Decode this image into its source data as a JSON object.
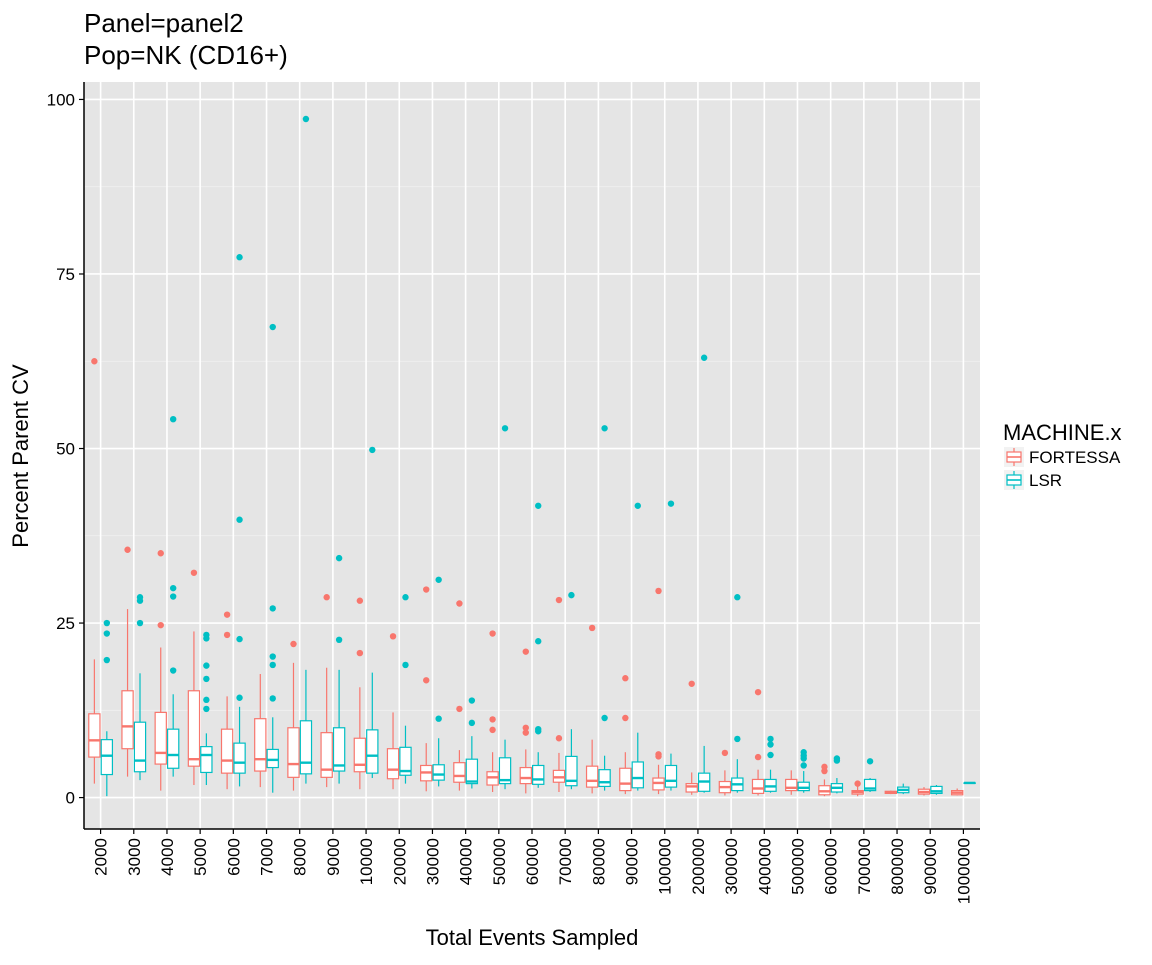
{
  "chart_data": {
    "type": "box",
    "title_lines": [
      "Panel=panel2",
      "Pop=NK (CD16+)"
    ],
    "xlabel": "Total Events Sampled",
    "ylabel": "Percent Parent CV",
    "ylim": [
      -4.5,
      102.5
    ],
    "yticks": [
      0,
      25,
      50,
      75,
      100
    ],
    "grid": true,
    "legend": {
      "title": "MACHINE.x",
      "position": "right"
    },
    "categories": [
      "2000",
      "3000",
      "4000",
      "5000",
      "6000",
      "7000",
      "8000",
      "9000",
      "10000",
      "20000",
      "30000",
      "40000",
      "50000",
      "60000",
      "70000",
      "80000",
      "90000",
      "100000",
      "200000",
      "300000",
      "400000",
      "500000",
      "600000",
      "700000",
      "800000",
      "900000",
      "1000000"
    ],
    "series": [
      {
        "name": "FORTESSA",
        "color": "#F8766D",
        "boxes": [
          {
            "lo": 2.0,
            "q1": 5.8,
            "med": 8.2,
            "q3": 12.0,
            "hi": 19.8,
            "outliers": [
              62.5
            ]
          },
          {
            "lo": 3.0,
            "q1": 7.0,
            "med": 10.2,
            "q3": 15.3,
            "hi": 27.0,
            "outliers": [
              35.5
            ]
          },
          {
            "lo": 1.0,
            "q1": 4.8,
            "med": 6.4,
            "q3": 12.2,
            "hi": 21.5,
            "outliers": [
              35.0,
              24.7
            ]
          },
          {
            "lo": 1.8,
            "q1": 4.5,
            "med": 5.5,
            "q3": 15.3,
            "hi": 23.8,
            "outliers": [
              32.2
            ]
          },
          {
            "lo": 1.2,
            "q1": 3.5,
            "med": 5.3,
            "q3": 9.8,
            "hi": 14.5,
            "outliers": [
              26.2,
              23.3
            ]
          },
          {
            "lo": 1.5,
            "q1": 3.8,
            "med": 5.5,
            "q3": 11.3,
            "hi": 17.7,
            "outliers": []
          },
          {
            "lo": 1.0,
            "q1": 2.9,
            "med": 4.8,
            "q3": 10.0,
            "hi": 19.3,
            "outliers": [
              22.0
            ]
          },
          {
            "lo": 1.5,
            "q1": 2.9,
            "med": 4.0,
            "q3": 9.3,
            "hi": 18.6,
            "outliers": [
              28.7
            ]
          },
          {
            "lo": 1.2,
            "q1": 3.7,
            "med": 4.7,
            "q3": 8.5,
            "hi": 15.8,
            "outliers": [
              28.2,
              20.7
            ]
          },
          {
            "lo": 1.2,
            "q1": 2.7,
            "med": 4.0,
            "q3": 7.0,
            "hi": 12.2,
            "outliers": [
              23.1
            ]
          },
          {
            "lo": 0.9,
            "q1": 2.4,
            "med": 3.6,
            "q3": 4.6,
            "hi": 7.8,
            "outliers": [
              29.8,
              16.8
            ]
          },
          {
            "lo": 1.0,
            "q1": 2.2,
            "med": 3.1,
            "q3": 5.0,
            "hi": 6.8,
            "outliers": [
              27.8,
              12.7
            ]
          },
          {
            "lo": 0.8,
            "q1": 1.8,
            "med": 2.9,
            "q3": 3.7,
            "hi": 6.5,
            "outliers": [
              23.5,
              11.2,
              9.7
            ]
          },
          {
            "lo": 0.6,
            "q1": 2.0,
            "med": 2.8,
            "q3": 4.3,
            "hi": 6.9,
            "outliers": [
              20.9,
              10.0,
              9.3
            ]
          },
          {
            "lo": 0.8,
            "q1": 2.2,
            "med": 2.9,
            "q3": 3.9,
            "hi": 6.4,
            "outliers": [
              28.3,
              8.5
            ]
          },
          {
            "lo": 0.6,
            "q1": 1.5,
            "med": 2.4,
            "q3": 4.5,
            "hi": 8.3,
            "outliers": [
              24.3
            ]
          },
          {
            "lo": 0.5,
            "q1": 1.0,
            "med": 2.0,
            "q3": 4.2,
            "hi": 6.5,
            "outliers": [
              17.1,
              11.4
            ]
          },
          {
            "lo": 0.5,
            "q1": 1.1,
            "med": 2.1,
            "q3": 2.8,
            "hi": 4.7,
            "outliers": [
              29.6,
              6.2,
              5.9
            ]
          },
          {
            "lo": 0.4,
            "q1": 0.8,
            "med": 1.6,
            "q3": 2.0,
            "hi": 3.6,
            "outliers": [
              16.3
            ]
          },
          {
            "lo": 0.3,
            "q1": 0.7,
            "med": 1.5,
            "q3": 2.3,
            "hi": 3.9,
            "outliers": [
              6.4
            ]
          },
          {
            "lo": 0.3,
            "q1": 0.6,
            "med": 1.3,
            "q3": 2.6,
            "hi": 4.0,
            "outliers": [
              15.1,
              5.8
            ]
          },
          {
            "lo": 0.4,
            "q1": 1.0,
            "med": 1.4,
            "q3": 2.6,
            "hi": 3.9,
            "outliers": []
          },
          {
            "lo": 0.2,
            "q1": 0.4,
            "med": 0.9,
            "q3": 1.7,
            "hi": 2.6,
            "outliers": [
              4.4,
              3.8
            ]
          },
          {
            "lo": 0.2,
            "q1": 0.5,
            "med": 0.8,
            "q3": 1.0,
            "hi": 1.6,
            "outliers": [
              2.0
            ]
          },
          {
            "lo": 0.5,
            "q1": 0.6,
            "med": 0.7,
            "q3": 0.9,
            "hi": 1.0,
            "outliers": []
          },
          {
            "lo": 0.3,
            "q1": 0.5,
            "med": 0.8,
            "q3": 1.2,
            "hi": 1.5,
            "outliers": []
          },
          {
            "lo": 0.3,
            "q1": 0.4,
            "med": 0.7,
            "q3": 1.0,
            "hi": 1.3,
            "outliers": []
          }
        ]
      },
      {
        "name": "LSR",
        "color": "#00BFC4",
        "boxes": [
          {
            "lo": 0.2,
            "q1": 3.3,
            "med": 6.0,
            "q3": 8.3,
            "hi": 9.5,
            "outliers": [
              25.0,
              23.5,
              19.7
            ]
          },
          {
            "lo": 2.5,
            "q1": 3.7,
            "med": 5.3,
            "q3": 10.8,
            "hi": 17.8,
            "outliers": [
              28.7,
              28.2,
              25.0
            ]
          },
          {
            "lo": 3.0,
            "q1": 4.2,
            "med": 6.1,
            "q3": 9.8,
            "hi": 14.8,
            "outliers": [
              54.2,
              30.0,
              28.8,
              18.2
            ]
          },
          {
            "lo": 1.8,
            "q1": 3.6,
            "med": 6.1,
            "q3": 7.3,
            "hi": 9.2,
            "outliers": [
              23.3,
              22.8,
              18.9,
              17.0,
              14.0,
              12.7
            ]
          },
          {
            "lo": 1.6,
            "q1": 3.5,
            "med": 5.0,
            "q3": 7.8,
            "hi": 13.0,
            "outliers": [
              77.4,
              39.8,
              22.7,
              14.3
            ]
          },
          {
            "lo": 0.7,
            "q1": 4.3,
            "med": 5.4,
            "q3": 6.9,
            "hi": 11.5,
            "outliers": [
              67.4,
              27.1,
              20.2,
              19.0,
              14.2
            ]
          },
          {
            "lo": 2.0,
            "q1": 3.4,
            "med": 5.0,
            "q3": 11.0,
            "hi": 18.3,
            "outliers": [
              97.2
            ]
          },
          {
            "lo": 2.0,
            "q1": 3.8,
            "med": 4.6,
            "q3": 10.0,
            "hi": 18.3,
            "outliers": [
              34.3,
              22.6
            ]
          },
          {
            "lo": 2.8,
            "q1": 3.5,
            "med": 6.0,
            "q3": 9.7,
            "hi": 17.9,
            "outliers": [
              49.8
            ]
          },
          {
            "lo": 2.0,
            "q1": 3.2,
            "med": 3.8,
            "q3": 7.2,
            "hi": 10.3,
            "outliers": [
              28.7,
              19.0
            ]
          },
          {
            "lo": 1.6,
            "q1": 2.5,
            "med": 3.3,
            "q3": 4.7,
            "hi": 8.5,
            "outliers": [
              31.2,
              11.3
            ]
          },
          {
            "lo": 1.3,
            "q1": 2.0,
            "med": 2.3,
            "q3": 5.5,
            "hi": 8.8,
            "outliers": [
              13.9,
              10.7
            ]
          },
          {
            "lo": 1.2,
            "q1": 2.0,
            "med": 2.5,
            "q3": 5.7,
            "hi": 8.3,
            "outliers": [
              52.9
            ]
          },
          {
            "lo": 1.4,
            "q1": 1.9,
            "med": 2.6,
            "q3": 4.6,
            "hi": 6.5,
            "outliers": [
              41.8,
              22.4,
              9.8,
              9.5
            ]
          },
          {
            "lo": 1.2,
            "q1": 1.7,
            "med": 2.4,
            "q3": 5.9,
            "hi": 9.8,
            "outliers": [
              29.0
            ]
          },
          {
            "lo": 1.0,
            "q1": 1.6,
            "med": 2.2,
            "q3": 4.0,
            "hi": 6.0,
            "outliers": [
              52.9,
              11.4
            ]
          },
          {
            "lo": 1.0,
            "q1": 1.4,
            "med": 2.8,
            "q3": 5.1,
            "hi": 9.3,
            "outliers": [
              41.8
            ]
          },
          {
            "lo": 1.0,
            "q1": 1.5,
            "med": 2.4,
            "q3": 4.6,
            "hi": 6.3,
            "outliers": [
              42.1
            ]
          },
          {
            "lo": 0.7,
            "q1": 0.9,
            "med": 2.3,
            "q3": 3.5,
            "hi": 7.4,
            "outliers": [
              63.0
            ]
          },
          {
            "lo": 0.7,
            "q1": 1.0,
            "med": 1.9,
            "q3": 2.8,
            "hi": 5.5,
            "outliers": [
              28.7,
              8.4
            ]
          },
          {
            "lo": 0.7,
            "q1": 0.9,
            "med": 1.6,
            "q3": 2.6,
            "hi": 4.0,
            "outliers": [
              8.4,
              7.6,
              6.1
            ]
          },
          {
            "lo": 0.7,
            "q1": 1.0,
            "med": 1.4,
            "q3": 2.2,
            "hi": 3.8,
            "outliers": [
              6.5,
              6.0,
              5.6,
              4.6
            ]
          },
          {
            "lo": 0.6,
            "q1": 0.8,
            "med": 1.4,
            "q3": 2.0,
            "hi": 2.8,
            "outliers": [
              5.6,
              5.3
            ]
          },
          {
            "lo": 0.8,
            "q1": 1.0,
            "med": 1.3,
            "q3": 2.6,
            "hi": 2.8,
            "outliers": [
              5.2
            ]
          },
          {
            "lo": 0.5,
            "q1": 0.7,
            "med": 1.1,
            "q3": 1.5,
            "hi": 2.0,
            "outliers": []
          },
          {
            "lo": 0.4,
            "q1": 0.6,
            "med": 0.9,
            "q3": 1.6,
            "hi": 1.8,
            "outliers": []
          },
          {
            "lo": 2.1,
            "q1": 2.1,
            "med": 2.1,
            "q3": 2.1,
            "hi": 2.1,
            "outliers": []
          }
        ]
      }
    ]
  }
}
